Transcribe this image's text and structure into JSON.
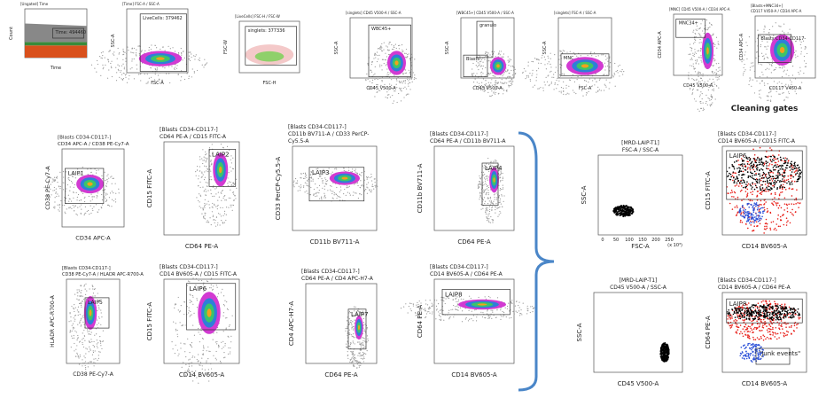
{
  "panels": [
    {
      "header": [
        "[Ungated] Time"
      ],
      "y_label": "Count",
      "x_label": "Time",
      "gates": [
        "Time: 494460"
      ]
    },
    {
      "header": [
        "[Time] FSC-A / SSC-A"
      ],
      "y_label": "SSC-A",
      "x_label": "FSC-A",
      "gates": [
        "LiveCells: 379462"
      ]
    },
    {
      "header": [
        "[LiveCells] FSC-H / FSC-W"
      ],
      "y_label": "FSC-W",
      "x_label": "FSC-H",
      "gates": [
        "singlets: 377336"
      ]
    },
    {
      "header": [
        "[singlets] CD45 V500-A / SSC-A"
      ],
      "y_label": "SSC-A",
      "x_label": "CD45 V500-A",
      "gates": [
        "WBC45+"
      ]
    },
    {
      "header": [
        "[WBC45+] CD45 V500-A / SSC-A"
      ],
      "y_label": "SSC-A",
      "x_label": "CD45 V500-A",
      "gates": [
        "granulo",
        "Blasts"
      ]
    },
    {
      "header": [
        "[singlets] FSC-A / SSC-A"
      ],
      "y_label": "SSC-A",
      "x_label": "FSC-A",
      "gates": [
        "MNC"
      ]
    },
    {
      "header": [
        "[MNC] CD45 V500-A / CD34 APC-A"
      ],
      "y_label": "CD34 APC-A",
      "x_label": "CD45 V500-A",
      "gates": [
        "MNC34+"
      ]
    },
    {
      "header": [
        "[Blasts+MNC34+]",
        "CD117 V450-A / CD34 APC-A"
      ],
      "y_label": "CD34 APC-A",
      "x_label": "CD117 V450-A",
      "gates": [
        "Blasts CD34-CD117-"
      ]
    },
    {
      "header": [
        "[Blasts CD34-CD117-]",
        "CD34 APC-A / CD38 PE-Cy7-A"
      ],
      "y_label": "CD38 PE-Cy7-A",
      "x_label": "CD34 APC-A",
      "gates": [
        "LAIP1"
      ]
    },
    {
      "header": [
        "[Blasts CD34-CD117-]",
        "CD64 PE-A / CD15 FITC-A"
      ],
      "y_label": "CD15 FITC-A",
      "x_label": "CD64 PE-A",
      "gates": [
        "LAIP2"
      ]
    },
    {
      "header": [
        "[Blasts CD34-CD117-]",
        "CD11b BV711-A / CD33 PerCP-",
        "Cy5.5-A"
      ],
      "y_label": "CD33 PerCP-Cy5.5-A",
      "x_label": "CD11b BV711-A",
      "gates": [
        "LAIP3"
      ]
    },
    {
      "header": [
        "[Blasts CD34-CD117-]",
        "CD64 PE-A / CD11b BV711-A"
      ],
      "y_label": "CD11b BV711-A",
      "x_label": "CD64 PE-A",
      "gates": [
        "LAIP4"
      ]
    },
    {
      "header": [
        "[Blasts CD34-CD117-]",
        "CD38 PE-Cy7-A / HLADR APC-R700-A"
      ],
      "y_label": "HLADR APC-R700-A",
      "x_label": "CD38 PE-Cy7-A",
      "gates": [
        "LAIP5"
      ]
    },
    {
      "header": [
        "[Blasts CD34-CD117-]",
        "CD14 BV605-A / CD15 FITC-A"
      ],
      "y_label": "CD15 FITC-A",
      "x_label": "CD14 BV605-A",
      "gates": [
        "LAIP6"
      ]
    },
    {
      "header": [
        "[Blasts CD34-CD117-]",
        "CD64 PE-A / CD4 APC-H7-A"
      ],
      "y_label": "CD4 APC-H7-A",
      "x_label": "CD64 PE-A",
      "gates": [
        "LAIP7"
      ]
    },
    {
      "header": [
        "[Blasts CD34-CD117-]",
        "CD14 BV605-A / CD64 PE-A"
      ],
      "y_label": "CD64 PE-A",
      "x_label": "CD14 BV605-A",
      "gates": [
        "LAIP8"
      ]
    },
    {
      "header": [
        "[MRD-LAIP-T1]",
        "FSC-A / SSC-A"
      ],
      "header_color": "#e8201a",
      "y_label": "SSC-A",
      "x_label": "FSC-A",
      "gates": [],
      "x_ticks": [
        "0",
        "50",
        "100",
        "150",
        "200",
        "250"
      ],
      "x_unit": "(x 10³)"
    },
    {
      "title": "Cleaning gates",
      "header": [
        "[Blasts CD34-CD117-]",
        "CD14 BV605-A / CD15 FITC-A"
      ],
      "y_label": "CD15 FITC-A",
      "x_label": "CD14 BV605-A",
      "gates": [
        "LAIP6"
      ]
    },
    {
      "header": [
        "[MRD-LAIP-T1]",
        "CD45 V500-A / SSC-A"
      ],
      "header_color": "#e8201a",
      "y_label": "SSC-A",
      "x_label": "CD45 V500-A",
      "gates": []
    },
    {
      "header": [
        "[Blasts CD34-CD117-]",
        "CD14 BV605-A / CD64 PE-A"
      ],
      "y_label": "CD64 PE-A",
      "x_label": "CD14 BV605-A",
      "gates": [
        "LAIP8",
        "\"Junk events\""
      ]
    }
  ]
}
